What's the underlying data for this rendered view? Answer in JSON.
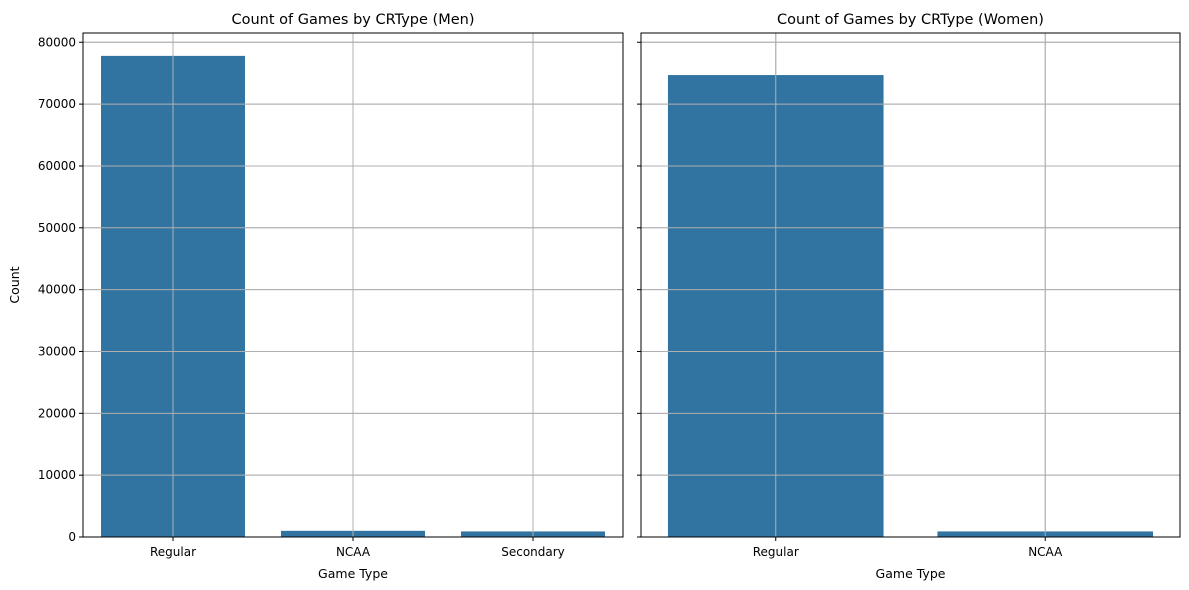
{
  "chart_data": [
    {
      "type": "bar",
      "title": "Count of Games by CRType (Men)",
      "xlabel": "Game Type",
      "ylabel": "Count",
      "categories": [
        "Regular",
        "NCAA",
        "Secondary"
      ],
      "values": [
        77800,
        1000,
        900
      ],
      "ylim": [
        0,
        81500
      ],
      "yticks": [
        0,
        10000,
        20000,
        30000,
        40000,
        50000,
        60000,
        70000,
        80000
      ],
      "grid": true,
      "bar_color": "#3274a1"
    },
    {
      "type": "bar",
      "title": "Count of Games by CRType (Women)",
      "xlabel": "Game Type",
      "ylabel": "",
      "categories": [
        "Regular",
        "NCAA"
      ],
      "values": [
        74700,
        900
      ],
      "ylim": [
        0,
        81500
      ],
      "yticks": [
        0,
        10000,
        20000,
        30000,
        40000,
        50000,
        60000,
        70000,
        80000
      ],
      "grid": true,
      "bar_color": "#3274a1"
    }
  ]
}
